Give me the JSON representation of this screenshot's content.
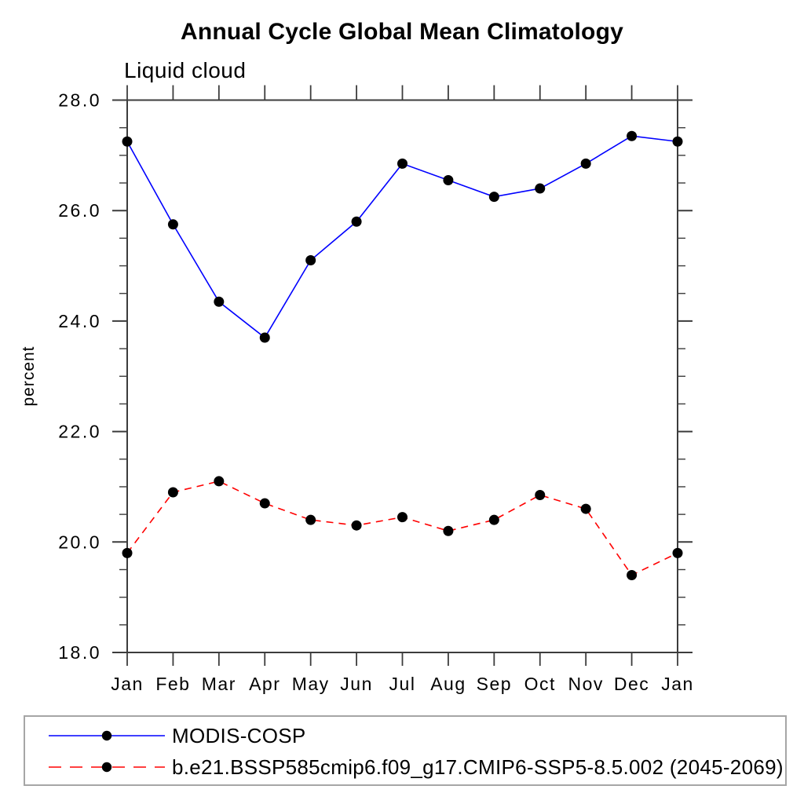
{
  "chart_data": {
    "type": "line",
    "title": "Annual Cycle Global Mean Climatology",
    "subtitle": "Liquid cloud",
    "ylabel": "percent",
    "xlabel": "",
    "categories": [
      "Jan",
      "Feb",
      "Mar",
      "Apr",
      "May",
      "Jun",
      "Jul",
      "Aug",
      "Sep",
      "Oct",
      "Nov",
      "Dec",
      "Jan"
    ],
    "series": [
      {
        "name": "MODIS-COSP",
        "color": "#0000ff",
        "line_style": "solid",
        "marker": "circle",
        "marker_color": "#000000",
        "values": [
          27.25,
          25.75,
          24.35,
          23.7,
          25.1,
          25.8,
          26.85,
          26.55,
          26.25,
          26.4,
          26.85,
          27.35,
          27.25
        ]
      },
      {
        "name": "b.e21.BSSP585cmip6.f09_g17.CMIP6-SSP5-8.5.002 (2045-2069)",
        "color": "#ff0000",
        "line_style": "dashed",
        "marker": "circle",
        "marker_color": "#000000",
        "values": [
          19.8,
          20.9,
          21.1,
          20.7,
          20.4,
          20.3,
          20.45,
          20.2,
          20.4,
          20.85,
          20.6,
          19.4,
          19.8
        ]
      }
    ],
    "ylim": [
      18.0,
      28.0
    ],
    "yticks": [
      18,
      20,
      22,
      24,
      26,
      28
    ],
    "ytick_labels": [
      "18.0",
      "20.0",
      "22.0",
      "24.0",
      "26.0",
      "28.0"
    ],
    "y_minor_step": 0.5,
    "grid": false,
    "legend_position": "bottom",
    "axis_color": "#3c3c3c",
    "text_color": "#000000"
  }
}
